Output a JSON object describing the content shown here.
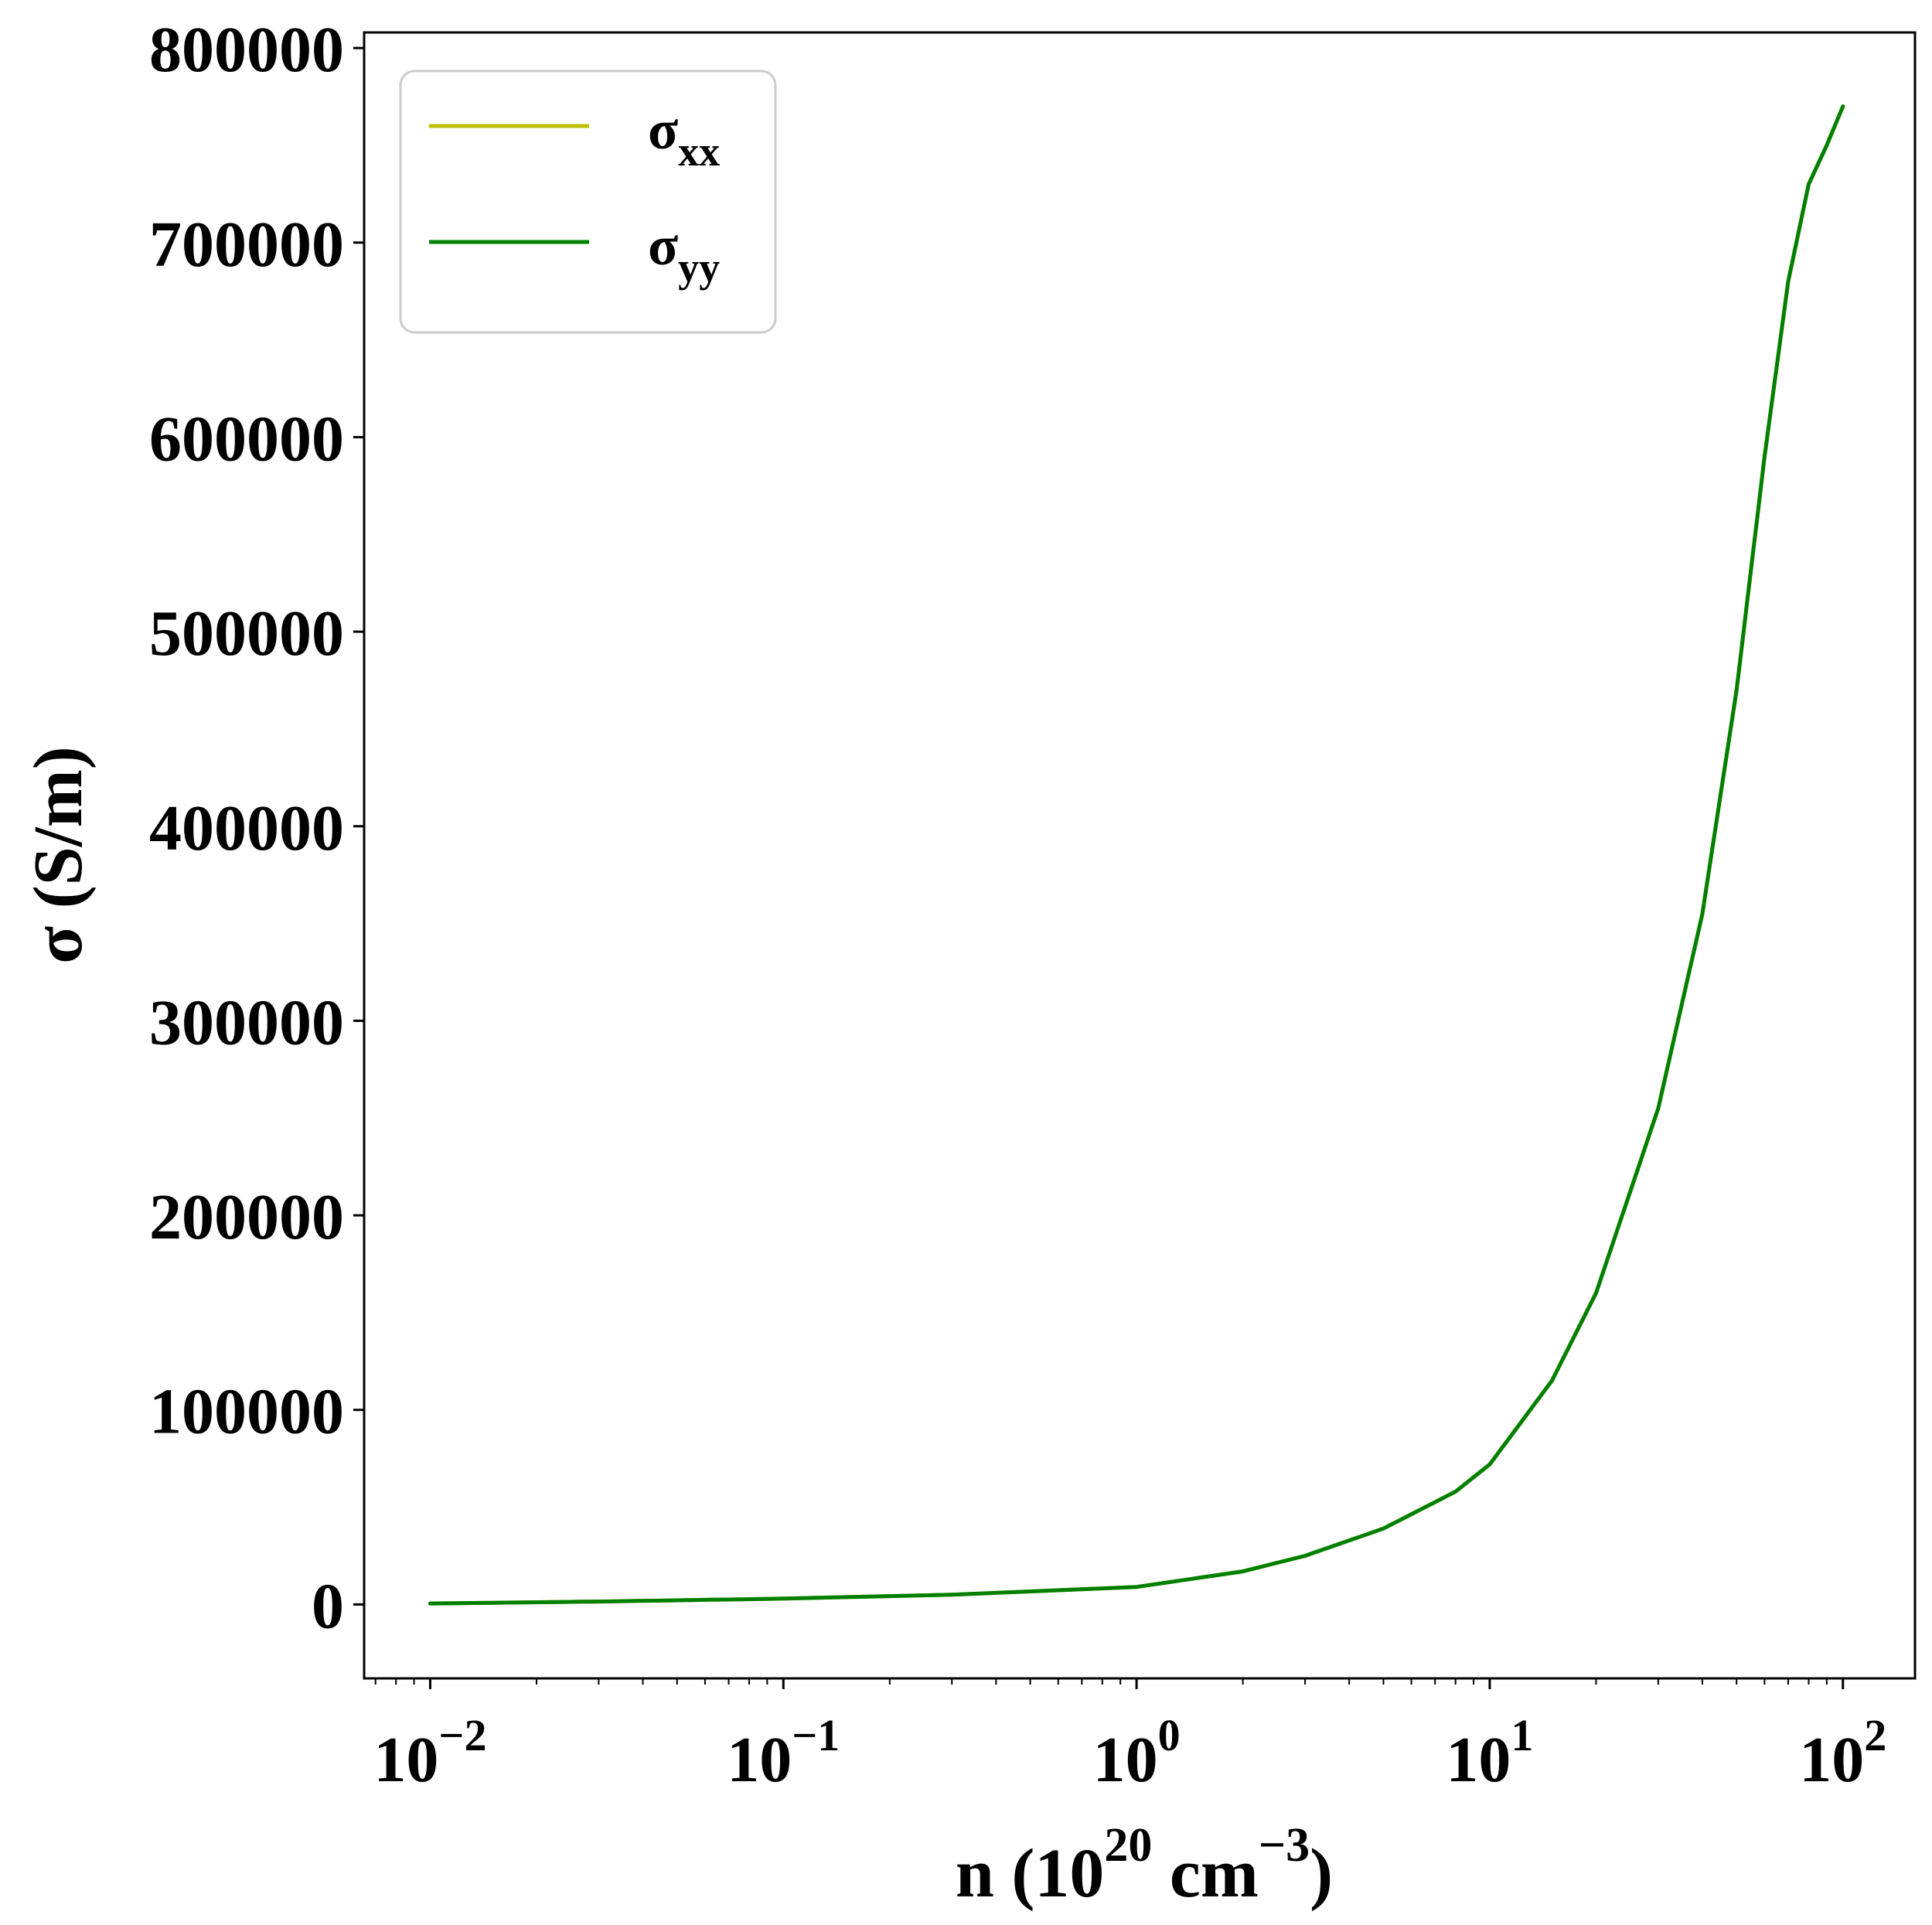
{
  "chart_data": {
    "type": "line",
    "xscale": "log",
    "xlim": [
      0.0065,
      160
    ],
    "ylim": [
      -38000,
      808000
    ],
    "grid": false,
    "legend_position": "top-left",
    "xlabel": {
      "prefix": "n (10",
      "sup1": "20",
      "middle": " cm",
      "sup2": "−3",
      "suffix": ")"
    },
    "ylabel": "σ (S/m)",
    "yticks": [
      0,
      100000,
      200000,
      300000,
      400000,
      500000,
      600000,
      700000,
      800000
    ],
    "ytick_labels": [
      "0",
      "100000",
      "200000",
      "300000",
      "400000",
      "500000",
      "600000",
      "700000",
      "800000"
    ],
    "xticks": [
      {
        "value": 0.01,
        "base": "10",
        "exp": "−2"
      },
      {
        "value": 0.1,
        "base": "10",
        "exp": "−1"
      },
      {
        "value": 1,
        "base": "10",
        "exp": "0"
      },
      {
        "value": 10,
        "base": "10",
        "exp": "1"
      },
      {
        "value": 100,
        "base": "10",
        "exp": "2"
      }
    ],
    "series": [
      {
        "name": "σ",
        "name_sub": "xx",
        "color": "#bfbf00",
        "x": [
          0.01,
          0.03,
          0.1,
          0.3,
          1,
          2,
          3,
          5,
          8,
          10,
          15,
          20,
          30,
          40,
          50,
          60,
          70,
          80,
          90,
          100
        ],
        "y": [
          500,
          1500,
          3000,
          5000,
          9000,
          17000,
          25000,
          39000,
          58000,
          72000,
          115000,
          160000,
          255000,
          355000,
          470000,
          590000,
          680000,
          730000,
          750000,
          770000
        ]
      },
      {
        "name": "σ",
        "name_sub": "yy",
        "color": "#007f00",
        "x": [
          0.01,
          0.03,
          0.1,
          0.3,
          1,
          2,
          3,
          5,
          8,
          10,
          15,
          20,
          30,
          40,
          50,
          60,
          70,
          80,
          90,
          100
        ],
        "y": [
          500,
          1500,
          3000,
          5000,
          9000,
          17000,
          25000,
          39000,
          58000,
          72000,
          115000,
          160000,
          255000,
          355000,
          470000,
          590000,
          680000,
          730000,
          750000,
          770000
        ]
      }
    ]
  }
}
